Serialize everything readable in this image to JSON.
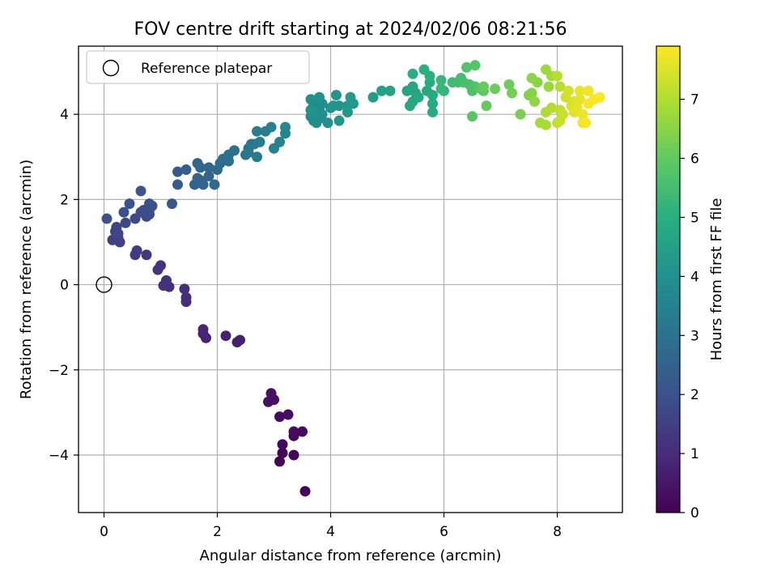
{
  "chart_data": {
    "type": "scatter",
    "title": "FOV centre drift starting at 2024/02/06 08:21:56",
    "xlabel": "Angular distance from reference (arcmin)",
    "ylabel": "Rotation from reference (arcmin)",
    "xlim": [
      -0.45,
      9.15
    ],
    "ylim": [
      -5.35,
      5.6
    ],
    "xticks": [
      0,
      2,
      4,
      6,
      8
    ],
    "yticks": [
      -4,
      -2,
      0,
      2,
      4
    ],
    "xtick_labels": [
      "0",
      "2",
      "4",
      "6",
      "8"
    ],
    "ytick_labels": [
      "−4",
      "−2",
      "0",
      "2",
      "4"
    ],
    "grid": true,
    "legend": {
      "placement": "top-left",
      "entries": [
        "Reference platepar"
      ]
    },
    "reference_point": {
      "x": 0,
      "y": 0,
      "label": "Reference platepar"
    },
    "colorbar": {
      "label": "Hours from first FF file",
      "colormap": "viridis",
      "range": [
        0,
        7.9
      ],
      "ticks": [
        0,
        1,
        2,
        3,
        4,
        5,
        6,
        7
      ],
      "tick_labels": [
        "0",
        "1",
        "2",
        "3",
        "4",
        "5",
        "6",
        "7"
      ]
    },
    "points": [
      [
        3.55,
        -4.85,
        0.05
      ],
      [
        3.1,
        -4.15,
        0.1
      ],
      [
        3.15,
        -3.95,
        0.12
      ],
      [
        3.35,
        -4.0,
        0.15
      ],
      [
        3.15,
        -3.75,
        0.18
      ],
      [
        3.35,
        -3.55,
        0.2
      ],
      [
        3.35,
        -3.45,
        0.22
      ],
      [
        3.5,
        -3.45,
        0.25
      ],
      [
        3.1,
        -3.1,
        0.28
      ],
      [
        3.25,
        -3.05,
        0.3
      ],
      [
        2.9,
        -2.75,
        0.35
      ],
      [
        3.0,
        -2.7,
        0.37
      ],
      [
        2.95,
        -2.55,
        0.4
      ],
      [
        2.35,
        -1.35,
        0.7
      ],
      [
        2.4,
        -1.3,
        0.72
      ],
      [
        2.15,
        -1.2,
        0.75
      ],
      [
        1.8,
        -1.25,
        0.8
      ],
      [
        1.75,
        -1.15,
        0.82
      ],
      [
        1.75,
        -1.05,
        0.85
      ],
      [
        1.45,
        -0.4,
        1.0
      ],
      [
        1.45,
        -0.3,
        1.02
      ],
      [
        1.42,
        -0.1,
        1.05
      ],
      [
        1.15,
        -0.05,
        1.1
      ],
      [
        1.05,
        -0.02,
        1.12
      ],
      [
        1.1,
        0.1,
        1.15
      ],
      [
        1.0,
        0.45,
        1.2
      ],
      [
        0.95,
        0.35,
        1.22
      ],
      [
        0.75,
        0.7,
        1.3
      ],
      [
        0.55,
        0.7,
        1.35
      ],
      [
        0.58,
        0.8,
        1.38
      ],
      [
        0.15,
        1.05,
        1.5
      ],
      [
        0.28,
        1.0,
        1.55
      ],
      [
        0.25,
        1.1,
        1.58
      ],
      [
        0.2,
        1.25,
        1.6
      ],
      [
        0.22,
        1.35,
        1.62
      ],
      [
        0.25,
        1.2,
        1.65
      ],
      [
        0.38,
        1.45,
        1.7
      ],
      [
        0.55,
        1.55,
        1.75
      ],
      [
        0.75,
        1.6,
        1.8
      ],
      [
        0.8,
        1.65,
        1.82
      ],
      [
        0.7,
        1.75,
        1.85
      ],
      [
        0.65,
        1.7,
        1.87
      ],
      [
        0.8,
        1.75,
        1.9
      ],
      [
        0.8,
        1.9,
        1.95
      ],
      [
        0.85,
        1.85,
        1.97
      ],
      [
        0.05,
        1.55,
        2.0
      ],
      [
        0.35,
        1.7,
        2.02
      ],
      [
        0.45,
        1.9,
        2.05
      ],
      [
        0.65,
        2.2,
        2.1
      ],
      [
        1.2,
        1.9,
        2.2
      ],
      [
        1.3,
        2.35,
        2.3
      ],
      [
        1.3,
        2.65,
        2.35
      ],
      [
        1.45,
        2.7,
        2.4
      ],
      [
        1.6,
        2.35,
        2.45
      ],
      [
        1.65,
        2.5,
        2.5
      ],
      [
        1.7,
        2.45,
        2.52
      ],
      [
        1.75,
        2.35,
        2.55
      ],
      [
        1.65,
        2.85,
        2.6
      ],
      [
        1.7,
        2.75,
        2.62
      ],
      [
        1.85,
        2.55,
        2.65
      ],
      [
        1.85,
        2.75,
        2.7
      ],
      [
        1.95,
        2.35,
        2.72
      ],
      [
        2.0,
        2.7,
        2.75
      ],
      [
        2.05,
        2.85,
        2.8
      ],
      [
        2.1,
        2.95,
        2.85
      ],
      [
        2.2,
        2.9,
        2.9
      ],
      [
        2.2,
        3.05,
        2.95
      ],
      [
        2.3,
        3.15,
        3.0
      ],
      [
        2.5,
        3.05,
        3.05
      ],
      [
        2.55,
        3.2,
        3.1
      ],
      [
        2.6,
        3.3,
        3.15
      ],
      [
        2.55,
        3.1,
        3.17
      ],
      [
        2.65,
        3.3,
        3.2
      ],
      [
        2.7,
        3.0,
        3.25
      ],
      [
        2.75,
        3.35,
        3.3
      ],
      [
        2.7,
        3.6,
        3.35
      ],
      [
        2.85,
        3.6,
        3.4
      ],
      [
        2.95,
        3.7,
        3.45
      ],
      [
        3.0,
        3.2,
        3.5
      ],
      [
        3.1,
        3.35,
        3.55
      ],
      [
        3.2,
        3.55,
        3.6
      ],
      [
        3.2,
        3.7,
        3.65
      ],
      [
        3.65,
        3.95,
        3.7
      ],
      [
        3.7,
        4.2,
        3.72
      ],
      [
        3.75,
        4.0,
        3.75
      ],
      [
        3.8,
        3.9,
        3.78
      ],
      [
        3.8,
        4.1,
        3.8
      ],
      [
        3.7,
        3.85,
        3.82
      ],
      [
        3.75,
        3.8,
        3.85
      ],
      [
        3.85,
        4.0,
        3.88
      ],
      [
        3.95,
        3.8,
        3.9
      ],
      [
        3.85,
        4.25,
        3.92
      ],
      [
        3.65,
        4.35,
        3.95
      ],
      [
        3.8,
        4.4,
        3.97
      ],
      [
        3.65,
        4.1,
        4.0
      ],
      [
        3.7,
        4.05,
        4.02
      ],
      [
        4.0,
        4.15,
        4.05
      ],
      [
        4.05,
        4.2,
        4.08
      ],
      [
        4.15,
        4.2,
        4.1
      ],
      [
        4.15,
        3.85,
        4.12
      ],
      [
        4.1,
        4.45,
        4.15
      ],
      [
        4.3,
        4.2,
        4.18
      ],
      [
        4.3,
        4.05,
        4.2
      ],
      [
        4.4,
        4.25,
        4.22
      ],
      [
        4.35,
        4.4,
        4.25
      ],
      [
        4.75,
        4.4,
        4.4
      ],
      [
        4.9,
        4.55,
        4.5
      ],
      [
        5.05,
        4.55,
        4.55
      ],
      [
        5.35,
        4.55,
        4.6
      ],
      [
        5.45,
        4.65,
        4.65
      ],
      [
        5.5,
        4.5,
        4.7
      ],
      [
        5.45,
        4.3,
        4.72
      ],
      [
        5.4,
        4.2,
        4.75
      ],
      [
        5.55,
        4.4,
        4.78
      ],
      [
        5.7,
        4.55,
        4.8
      ],
      [
        5.75,
        4.75,
        4.82
      ],
      [
        5.8,
        4.45,
        4.85
      ],
      [
        5.8,
        4.25,
        4.88
      ],
      [
        5.8,
        4.05,
        4.9
      ],
      [
        5.45,
        4.95,
        4.95
      ],
      [
        5.65,
        5.05,
        5.0
      ],
      [
        5.75,
        4.9,
        5.05
      ],
      [
        6.0,
        4.55,
        5.2
      ],
      [
        5.95,
        4.6,
        5.25
      ],
      [
        5.95,
        4.8,
        5.3
      ],
      [
        6.15,
        4.75,
        5.4
      ],
      [
        6.25,
        4.75,
        5.45
      ],
      [
        6.3,
        4.85,
        5.5
      ],
      [
        6.35,
        4.75,
        5.55
      ],
      [
        6.45,
        4.7,
        5.6
      ],
      [
        6.5,
        4.55,
        5.65
      ],
      [
        6.55,
        4.65,
        5.7
      ],
      [
        6.4,
        5.1,
        5.75
      ],
      [
        6.55,
        5.15,
        5.8
      ],
      [
        6.5,
        3.95,
        5.85
      ],
      [
        6.65,
        4.6,
        5.9
      ],
      [
        6.7,
        4.55,
        5.95
      ],
      [
        6.75,
        4.2,
        6.0
      ],
      [
        6.7,
        4.65,
        6.05
      ],
      [
        6.9,
        4.6,
        6.1
      ],
      [
        7.15,
        4.7,
        6.15
      ],
      [
        7.2,
        4.5,
        6.2
      ],
      [
        7.35,
        4.0,
        6.3
      ],
      [
        7.5,
        4.45,
        6.4
      ],
      [
        7.55,
        4.5,
        6.45
      ],
      [
        7.65,
        4.75,
        6.5
      ],
      [
        7.55,
        4.85,
        6.55
      ],
      [
        7.6,
        4.3,
        6.6
      ],
      [
        7.85,
        4.65,
        6.7
      ],
      [
        7.8,
        5.05,
        6.75
      ],
      [
        7.9,
        4.9,
        6.8
      ],
      [
        7.7,
        3.8,
        6.85
      ],
      [
        7.8,
        3.75,
        6.9
      ],
      [
        7.8,
        4.05,
        6.95
      ],
      [
        7.9,
        4.15,
        7.0
      ],
      [
        8.0,
        4.9,
        7.05
      ],
      [
        8.05,
        4.65,
        7.1
      ],
      [
        8.05,
        4.1,
        7.15
      ],
      [
        8.0,
        3.8,
        7.2
      ],
      [
        8.05,
        3.85,
        7.25
      ],
      [
        8.1,
        4.0,
        7.3
      ],
      [
        8.15,
        4.4,
        7.35
      ],
      [
        8.2,
        4.55,
        7.4
      ],
      [
        8.25,
        4.2,
        7.45
      ],
      [
        8.3,
        4.3,
        7.5
      ],
      [
        8.3,
        4.05,
        7.55
      ],
      [
        8.35,
        4.15,
        7.6
      ],
      [
        8.4,
        4.35,
        7.62
      ],
      [
        8.4,
        4.55,
        7.65
      ],
      [
        8.45,
        4.0,
        7.7
      ],
      [
        8.45,
        3.8,
        7.72
      ],
      [
        8.55,
        4.55,
        7.75
      ],
      [
        8.55,
        4.25,
        7.8
      ],
      [
        8.5,
        3.8,
        7.82
      ],
      [
        8.65,
        4.35,
        7.85
      ],
      [
        8.75,
        4.4,
        7.9
      ]
    ]
  }
}
